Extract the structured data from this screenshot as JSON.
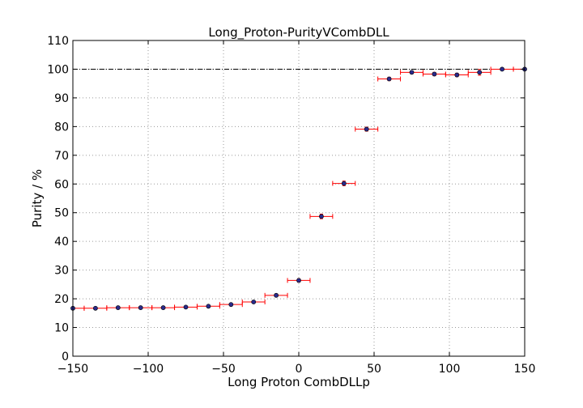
{
  "chart_data": {
    "type": "scatter",
    "title": "Long_Proton-PurityVCombDLL",
    "xlabel": "Long Proton CombDLLp",
    "ylabel": "Purity / %",
    "xlim": [
      -150,
      150
    ],
    "ylim": [
      0,
      110
    ],
    "xticks": [
      -150,
      -100,
      -50,
      0,
      50,
      100,
      150
    ],
    "yticks": [
      0,
      10,
      20,
      30,
      40,
      50,
      60,
      70,
      80,
      90,
      100,
      110
    ],
    "xtick_labels": [
      "−150",
      "−100",
      "−50",
      "0",
      "50",
      "100",
      "150"
    ],
    "ytick_labels": [
      "0",
      "10",
      "20",
      "30",
      "40",
      "50",
      "60",
      "70",
      "80",
      "90",
      "100",
      "110"
    ],
    "grid": true,
    "reference_line_y": 100,
    "x_bin_half_width": 7.5,
    "colors": {
      "marker": "#2a2a8c",
      "errorbar": "#ff0000",
      "reference": "#000000",
      "grid": "#9a9a9a"
    },
    "x": [
      -150,
      -135,
      -120,
      -105,
      -90,
      -75,
      -60,
      -45,
      -30,
      -15,
      0,
      15,
      30,
      45,
      60,
      75,
      90,
      105,
      120,
      135,
      150
    ],
    "y": [
      16.7,
      16.7,
      16.9,
      16.9,
      16.9,
      17.1,
      17.4,
      18.0,
      18.9,
      21.2,
      26.4,
      48.7,
      60.2,
      79.1,
      96.6,
      98.9,
      98.3,
      98.0,
      98.9,
      100.0,
      100.0
    ],
    "yerr": [
      0.3,
      0.3,
      0.3,
      0.3,
      0.3,
      0.3,
      0.3,
      0.3,
      0.4,
      0.5,
      0.6,
      0.8,
      0.8,
      0.7,
      0.6,
      0.5,
      0.6,
      0.6,
      1.0,
      0.3,
      0.3
    ]
  }
}
